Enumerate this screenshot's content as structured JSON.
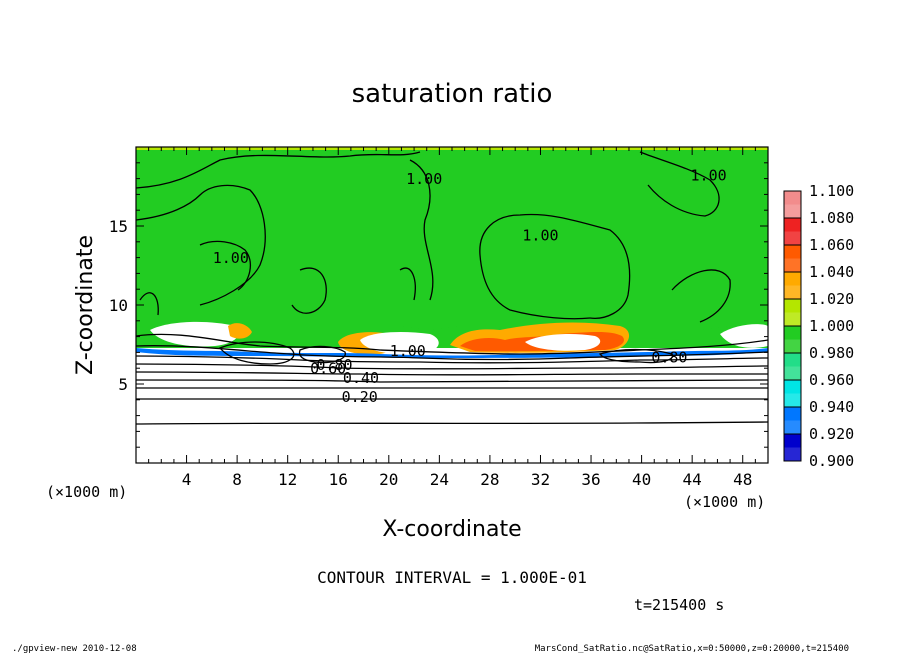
{
  "chart_data": {
    "type": "heatmap",
    "title": "saturation ratio",
    "xlabel": "X-coordinate",
    "ylabel": "Z-coordinate",
    "x_unit": "(×1000 m)",
    "y_unit": "(×1000 m)",
    "xlim": [
      0,
      50
    ],
    "ylim": [
      0,
      20
    ],
    "x_ticks": [
      4,
      8,
      12,
      16,
      20,
      24,
      28,
      32,
      36,
      40,
      44,
      48
    ],
    "y_ticks": [
      5,
      10,
      15
    ],
    "colorbar": {
      "levels": [
        1.1,
        1.08,
        1.06,
        1.04,
        1.02,
        1.0,
        0.98,
        0.96,
        0.94,
        0.92,
        0.9
      ],
      "labels": [
        "1.100",
        "1.080",
        "1.060",
        "1.040",
        "1.020",
        "1.000",
        "0.980",
        "0.960",
        "0.940",
        "0.920",
        "0.900"
      ],
      "colors": [
        "#f28c8c",
        "#ee2222",
        "#ff5a00",
        "#ffaa00",
        "#b4e600",
        "#22cc22",
        "#22dd88",
        "#00e5e5",
        "#0077ff",
        "#0000cc",
        "#660099"
      ]
    },
    "contour_labels": [
      {
        "text": "1.00",
        "x": 22.8,
        "z": 17.8
      },
      {
        "text": "1.00",
        "x": 45.3,
        "z": 18.0
      },
      {
        "text": "1.00",
        "x": 32.0,
        "z": 14.2
      },
      {
        "text": "1.00",
        "x": 7.5,
        "z": 12.8
      },
      {
        "text": "1.00",
        "x": 21.5,
        "z": 6.9
      },
      {
        "text": "0.80",
        "x": 15.7,
        "z": 6.0
      },
      {
        "text": "0.80",
        "x": 42.2,
        "z": 6.5
      },
      {
        "text": "0.60",
        "x": 15.2,
        "z": 5.8
      },
      {
        "text": "0.40",
        "x": 17.8,
        "z": 5.2
      },
      {
        "text": "0.20",
        "x": 17.7,
        "z": 4.0
      }
    ],
    "contour_interval_text": "CONTOUR INTERVAL = 1.000E-01",
    "time_text": "t=215400 s"
  },
  "footer": {
    "left": "./gpview-new  2010-12-08",
    "right": "MarsCond_SatRatio.nc@SatRatio,x=0:50000,z=0:20000,t=215400"
  }
}
